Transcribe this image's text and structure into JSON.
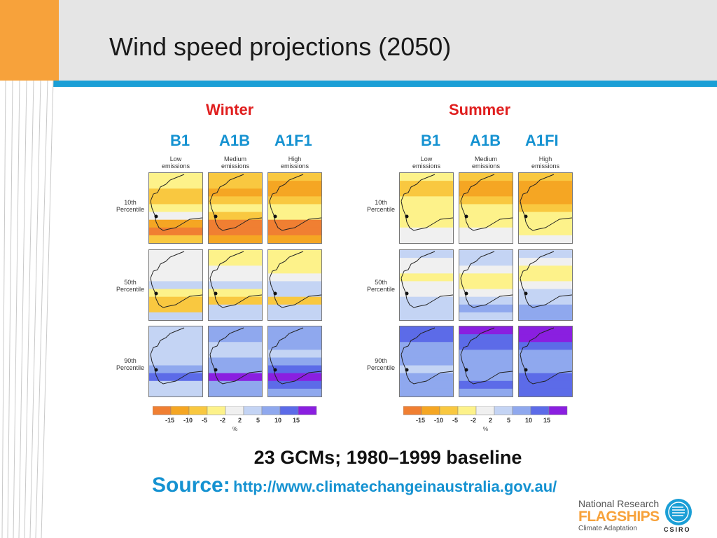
{
  "slide": {
    "title": "Wind speed projections (2050)",
    "winter_label": "Winter",
    "summer_label": "Summer",
    "winter_scenarios": [
      "B1",
      "A1B",
      "A1F1"
    ],
    "summer_scenarios": [
      "B1",
      "A1B",
      "A1FI"
    ],
    "emission_labels": [
      "Low\nemissions",
      "Medium\nemissions",
      "High\nemissions"
    ],
    "percentile_labels": [
      "10th\nPercentile",
      "50th\nPercentile",
      "90th\nPercentile"
    ],
    "legend_ticks": [
      "-15",
      "-10",
      "-5",
      "-2",
      "2",
      "5",
      "10",
      "15"
    ],
    "legend_unit": "%",
    "legend_colors": [
      "#f07f32",
      "#f5a623",
      "#f9c840",
      "#fdf28a",
      "#f0f0f0",
      "#c4d4f4",
      "#8fa8ee",
      "#5c6be8",
      "#8a1fe0"
    ],
    "gcms": "23 GCMs; 1980–1999 baseline",
    "source_label": "Source:",
    "source_url": "http://www.climatechangeinaustralia.gov.au/",
    "logo_national": "National Research",
    "logo_flagships": "FLAGSHIPS",
    "logo_adaptation": "Climate Adaptation",
    "logo_csiro": "CSIRO"
  }
}
